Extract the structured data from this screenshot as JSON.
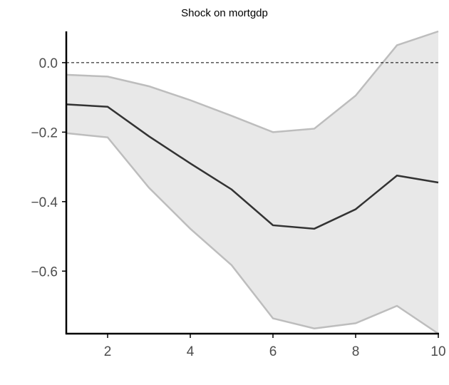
{
  "chart_data": {
    "type": "line",
    "title": "Shock on mortgdp",
    "xlabel": "",
    "ylabel": "",
    "x": [
      1,
      2,
      3,
      4,
      5,
      6,
      7,
      8,
      9,
      10
    ],
    "series": [
      {
        "role": "estimate",
        "values": [
          -0.12,
          -0.127,
          -0.212,
          -0.29,
          -0.365,
          -0.468,
          -0.478,
          -0.422,
          -0.325,
          -0.345
        ]
      },
      {
        "role": "upper_bound",
        "values": [
          -0.035,
          -0.04,
          -0.068,
          -0.108,
          -0.153,
          -0.2,
          -0.19,
          -0.095,
          0.05,
          0.09
        ]
      },
      {
        "role": "lower_bound",
        "values": [
          -0.203,
          -0.215,
          -0.36,
          -0.478,
          -0.583,
          -0.736,
          -0.765,
          -0.75,
          -0.7,
          -0.78
        ]
      }
    ],
    "reference_line": {
      "y": 0.0,
      "style": "dashed"
    },
    "xticks": [
      2,
      4,
      6,
      8,
      10
    ],
    "yticks": [
      0.0,
      -0.2,
      -0.4,
      -0.6
    ],
    "ytick_labels": [
      "0.0",
      "−0.2",
      "−0.4",
      "−0.6"
    ],
    "xlim": [
      1,
      10
    ],
    "ylim": [
      -0.78,
      0.09
    ],
    "grid": false,
    "colors": {
      "estimate": "#333333",
      "band_fill": "#e8e8e8",
      "band_edge": "#bdbdbd",
      "axis": "#000000",
      "tick_text": "#4d4d4d"
    }
  }
}
